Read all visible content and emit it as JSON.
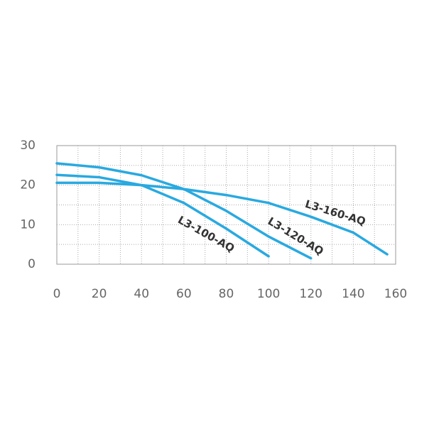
{
  "chart_data": {
    "type": "line",
    "x": [
      0,
      20,
      40,
      60,
      80,
      100,
      120,
      140,
      156
    ],
    "series": [
      {
        "name": "L3-100-AQ",
        "color": "#29a9e0",
        "values": [
          22.6,
          22,
          20,
          15.5,
          9,
          2,
          null,
          null,
          null
        ]
      },
      {
        "name": "L3-120-AQ",
        "color": "#29a9e0",
        "values": [
          25.5,
          24.5,
          22.5,
          19,
          13.5,
          7,
          1.5,
          null,
          null
        ]
      },
      {
        "name": "L3-160-AQ",
        "color": "#29a9e0",
        "values": [
          20.6,
          20.6,
          20,
          19,
          17.5,
          15.5,
          12,
          8,
          2.5
        ]
      }
    ],
    "xlim": [
      0,
      160
    ],
    "xticks": [
      0,
      20,
      40,
      60,
      80,
      100,
      120,
      140,
      160
    ],
    "ylim": [
      0,
      30
    ],
    "yticks": [
      0,
      10,
      20,
      30
    ],
    "grid": true
  }
}
